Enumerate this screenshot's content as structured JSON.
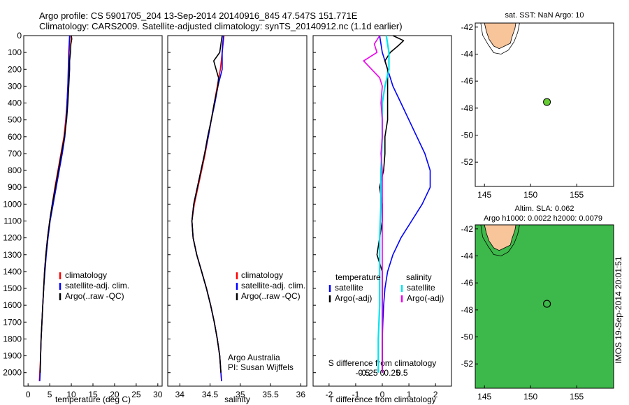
{
  "header": {
    "line1": "Argo profile: CS 5901705_204 13-Sep-2014 20140916_845 47.547S 151.771E",
    "line2": "Climatology: CARS2009. Satellite-adjusted climatology: synTS_20140912.nc (1.1d earlier)"
  },
  "colors": {
    "climatology": "#ff0000",
    "satellite": "#0000ff",
    "argo": "#000000",
    "sal_satellite": "#00e5ee",
    "sal_argo": "#ee00ee",
    "land": "#f8c49a",
    "float_marker": "#66cc33"
  },
  "chart_data": [
    {
      "type": "line",
      "name": "temperature-profile",
      "xlabel": "temperature (deg C)",
      "xlim": [
        -1,
        31
      ],
      "xticks": [
        0,
        5,
        10,
        15,
        20,
        25,
        30
      ],
      "ylim": [
        0,
        2080
      ],
      "yticks": [
        0,
        100,
        200,
        300,
        400,
        500,
        600,
        700,
        800,
        900,
        1000,
        1100,
        1200,
        1300,
        1400,
        1500,
        1600,
        1700,
        1800,
        1900,
        2000
      ],
      "y_reversed": true,
      "legend": [
        "climatology",
        "satellite-adj. clim.",
        "Argo(..raw -QC)"
      ],
      "series": [
        {
          "name": "climatology",
          "color": "#ff0000",
          "depth": [
            0,
            100,
            200,
            300,
            400,
            500,
            600,
            700,
            800,
            900,
            1000,
            1100,
            1200,
            1300,
            1400,
            1500,
            1600,
            1700,
            1800,
            1900,
            2000,
            2050
          ],
          "values": [
            9.7,
            9.5,
            9.4,
            9.2,
            9.0,
            8.7,
            8.3,
            7.6,
            6.9,
            6.2,
            5.6,
            5.0,
            4.5,
            4.1,
            3.8,
            3.6,
            3.4,
            3.2,
            3.0,
            2.9,
            2.7,
            2.6
          ]
        },
        {
          "name": "satellite-adj. clim.",
          "color": "#0000ff",
          "depth": [
            0,
            100,
            200,
            300,
            400,
            500,
            600,
            700,
            800,
            900,
            1000,
            1100,
            1200,
            1300,
            1400,
            1500,
            1600,
            1700,
            1800,
            1900,
            2000,
            2050
          ],
          "values": [
            9.6,
            9.4,
            9.3,
            9.2,
            9.0,
            8.8,
            8.5,
            7.9,
            7.2,
            6.5,
            5.8,
            5.1,
            4.6,
            4.2,
            3.9,
            3.6,
            3.4,
            3.2,
            3.0,
            2.9,
            2.8,
            2.7
          ]
        },
        {
          "name": "Argo(..raw -QC)",
          "color": "#000000",
          "depth": [
            0,
            20,
            50,
            100,
            150,
            200,
            300,
            400,
            500,
            600,
            700,
            800,
            900,
            1000,
            1100,
            1200,
            1300,
            1400,
            1500,
            1600,
            1700,
            1800,
            1900,
            2000
          ],
          "values": [
            10.0,
            10.1,
            9.9,
            9.8,
            9.6,
            9.6,
            9.4,
            9.2,
            8.9,
            8.4,
            7.7,
            7.0,
            6.3,
            5.6,
            5.0,
            4.5,
            4.1,
            3.8,
            3.6,
            3.4,
            3.2,
            3.0,
            2.9,
            2.8
          ]
        }
      ]
    },
    {
      "type": "line",
      "name": "salinity-profile",
      "xlabel": "salinity",
      "xlim": [
        33.8,
        36.1
      ],
      "xticks": [
        34,
        34.5,
        35,
        35.5,
        36
      ],
      "ylim": [
        0,
        2080
      ],
      "y_reversed": true,
      "legend": [
        "climatology",
        "satellite-adj. clim.",
        "Argo(..raw -QC)"
      ],
      "annotation": [
        "Argo Australia",
        "PI: Susan Wijffels"
      ],
      "series": [
        {
          "name": "climatology",
          "color": "#ff0000",
          "depth": [
            0,
            100,
            200,
            300,
            400,
            500,
            600,
            700,
            800,
            900,
            1000,
            1100,
            1200,
            1300,
            1400,
            1500,
            1600,
            1700,
            1800,
            1900,
            2000,
            2050
          ],
          "values": [
            34.73,
            34.7,
            34.67,
            34.62,
            34.57,
            34.52,
            34.47,
            34.42,
            34.36,
            34.3,
            34.24,
            34.2,
            34.22,
            34.28,
            34.36,
            34.44,
            34.51,
            34.57,
            34.62,
            34.66,
            34.68,
            34.69
          ]
        },
        {
          "name": "satellite-adj. clim.",
          "color": "#0000ff",
          "depth": [
            0,
            100,
            200,
            300,
            400,
            500,
            600,
            700,
            800,
            900,
            1000,
            1100,
            1200,
            1300,
            1400,
            1500,
            1600,
            1700,
            1800,
            1900,
            2000,
            2050
          ],
          "values": [
            34.72,
            34.7,
            34.7,
            34.63,
            34.58,
            34.52,
            34.47,
            34.41,
            34.35,
            34.29,
            34.23,
            34.2,
            34.22,
            34.28,
            34.36,
            34.44,
            34.51,
            34.57,
            34.62,
            34.66,
            34.68,
            34.69
          ]
        },
        {
          "name": "Argo(..raw -QC)",
          "color": "#000000",
          "depth": [
            0,
            50,
            100,
            150,
            200,
            250,
            300,
            400,
            500,
            600,
            700,
            800,
            900,
            1000,
            1100,
            1200,
            1300,
            1400,
            1500,
            1600,
            1700,
            1800,
            1900,
            2000
          ],
          "values": [
            34.7,
            34.68,
            34.66,
            34.56,
            34.6,
            34.64,
            34.63,
            34.57,
            34.52,
            34.46,
            34.41,
            34.35,
            34.29,
            34.23,
            34.2,
            34.22,
            34.28,
            34.36,
            34.44,
            34.51,
            34.57,
            34.62,
            34.66,
            34.68
          ]
        }
      ]
    },
    {
      "type": "line",
      "name": "difference-profile",
      "xlabel": "T difference from climatology",
      "xlabel_top": "S difference from climatology",
      "xlim": [
        -2.6,
        2.6
      ],
      "xticks": [
        -2,
        -1,
        0,
        1,
        2
      ],
      "xtick_labels_S": [
        "-0.5",
        "-0.25",
        "0",
        "0.25",
        "0.5"
      ],
      "xticks_S": [
        -0.5,
        -0.25,
        0,
        0.25,
        0.5
      ],
      "ylim": [
        0,
        2080
      ],
      "y_reversed": true,
      "legend_headers": [
        "temperature",
        "salinity"
      ],
      "legend": [
        "satellite",
        "Argo(-adj)",
        "satellite",
        "Argo(-adj)"
      ],
      "series": [
        {
          "name": "T satellite",
          "color": "#0000ff",
          "depth": [
            0,
            100,
            200,
            300,
            400,
            500,
            600,
            700,
            800,
            900,
            1000,
            1100,
            1200,
            1300,
            1400,
            1500,
            1600,
            1700,
            1800,
            1900,
            2000
          ],
          "values": [
            -0.1,
            0,
            0.2,
            0.4,
            0.7,
            1.0,
            1.3,
            1.6,
            1.8,
            1.8,
            1.5,
            1.1,
            0.7,
            0.4,
            0.2,
            0.1,
            0.05,
            0.02,
            0,
            0,
            0
          ]
        },
        {
          "name": "T Argo(-adj)",
          "color": "#000000",
          "depth": [
            0,
            30,
            60,
            100,
            150,
            200,
            300,
            400,
            500,
            600,
            700,
            800,
            900,
            1000,
            1100,
            1200,
            1300,
            1400,
            1500,
            1600,
            1700,
            1800,
            1900,
            2000
          ],
          "values": [
            0.4,
            0.8,
            0.6,
            0.3,
            0.1,
            0.2,
            0.2,
            0.2,
            0.2,
            0.1,
            0.1,
            0.05,
            -0.1,
            0,
            0,
            -0.1,
            -0.2,
            0,
            0,
            0,
            0,
            0,
            0,
            0
          ]
        },
        {
          "name": "S satellite",
          "color": "#00e5ee",
          "depth": [
            0,
            100,
            200,
            300,
            400,
            600,
            800,
            1000,
            1200,
            1400,
            1600,
            1800,
            2000
          ],
          "values": [
            0.03,
            0.05,
            0.05,
            0.02,
            0.0,
            0.0,
            -0.01,
            -0.01,
            -0.02,
            -0.02,
            -0.02,
            -0.03,
            -0.03
          ]
        },
        {
          "name": "S Argo(-adj)",
          "color": "#ee00ee",
          "depth": [
            0,
            50,
            100,
            150,
            200,
            250,
            300,
            400,
            500,
            600,
            700,
            800,
            900,
            1000,
            1200,
            1400,
            1600,
            1800,
            2000
          ],
          "values": [
            -0.02,
            -0.06,
            -0.04,
            -0.14,
            -0.08,
            -0.02,
            0.0,
            -0.01,
            0.0,
            0.0,
            -0.01,
            0.0,
            0.0,
            0.0,
            0.0,
            0.0,
            0.0,
            0.0,
            0.0
          ]
        }
      ]
    },
    {
      "type": "scatter",
      "name": "position-map",
      "title": "sat. SST: NaN Argo: 10",
      "xlim": [
        144,
        159
      ],
      "xticks": [
        145,
        150,
        155
      ],
      "ylim": [
        -53.8,
        -41.7
      ],
      "yticks": [
        -42,
        -44,
        -46,
        -48,
        -50,
        -52
      ],
      "points": [
        {
          "x": 151.771,
          "y": -47.547
        }
      ]
    },
    {
      "type": "heatmap",
      "name": "sla-map",
      "title": "Altim. SLA: 0.062",
      "subtitle": "Argo h1000: 0.0022 h2000: 0.0079",
      "xlim": [
        144,
        159
      ],
      "xticks": [
        145,
        150,
        155
      ],
      "ylim": [
        -53.8,
        -41.7
      ],
      "yticks": [
        -42,
        -44,
        -46,
        -48,
        -50,
        -52
      ],
      "points": [
        {
          "x": 151.771,
          "y": -47.547
        }
      ],
      "side_label": "IMOS 19-Sep-2014 20:01:51"
    }
  ]
}
